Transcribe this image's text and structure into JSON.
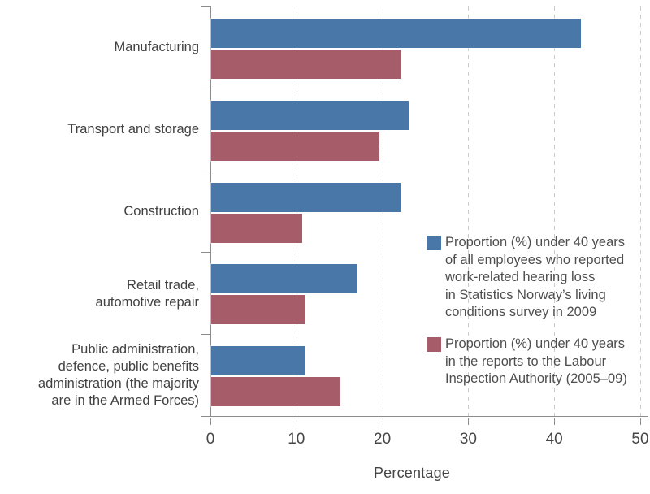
{
  "chart_data": {
    "type": "bar",
    "orientation": "horizontal",
    "xlabel": "Percentage",
    "xlim": [
      0,
      50
    ],
    "xticks": [
      0,
      10,
      20,
      30,
      40,
      50
    ],
    "grid": "vertical dashed gridlines at each tick",
    "legend_position": "right-inside, stacked",
    "categories": [
      {
        "label": "Manufacturing",
        "lines": [
          "Manufacturing"
        ]
      },
      {
        "label": "Transport and storage",
        "lines": [
          "Transport and storage"
        ]
      },
      {
        "label": "Construction",
        "lines": [
          "Construction"
        ]
      },
      {
        "label": "Retail trade, automotive repair",
        "lines": [
          "Retail trade,",
          "automotive repair"
        ]
      },
      {
        "label": "Public administration, defence, public benefits administration (the majority are in the Armed Forces)",
        "lines": [
          "Public administration,",
          "defence, public benefits",
          "administration (the majority",
          "are in the Armed Forces)"
        ]
      }
    ],
    "series": [
      {
        "name": "Proportion (%) under 40 years of all employees who reported work-related hearing loss in Statistics Norway's living conditions survey in 2009",
        "color": "#4877a8",
        "values": [
          43,
          23,
          22,
          17,
          11
        ]
      },
      {
        "name": "Proportion (%) under 40 years in the reports to the Labour Inspection Authority (2005–09)",
        "color": "#a75c6a",
        "values": [
          22,
          19.6,
          10.6,
          11,
          15
        ]
      }
    ],
    "legend": [
      {
        "swatch_color": "#4877a8",
        "lines": [
          "Proportion (%) under 40 years",
          "of all employees who reported",
          "work-related hearing loss",
          "in Statistics Norway’s living",
          "conditions survey in 2009"
        ]
      },
      {
        "swatch_color": "#a75c6a",
        "lines": [
          "Proportion (%) under 40 years",
          "in the reports to the Labour",
          "Inspection Authority (2005–09)"
        ]
      }
    ],
    "colors": {
      "series_blue": "#4877a8",
      "series_red": "#a75c6a",
      "axis_line": "#8c8c8c",
      "gridline": "#cbcbcb",
      "text": "#454545"
    }
  }
}
